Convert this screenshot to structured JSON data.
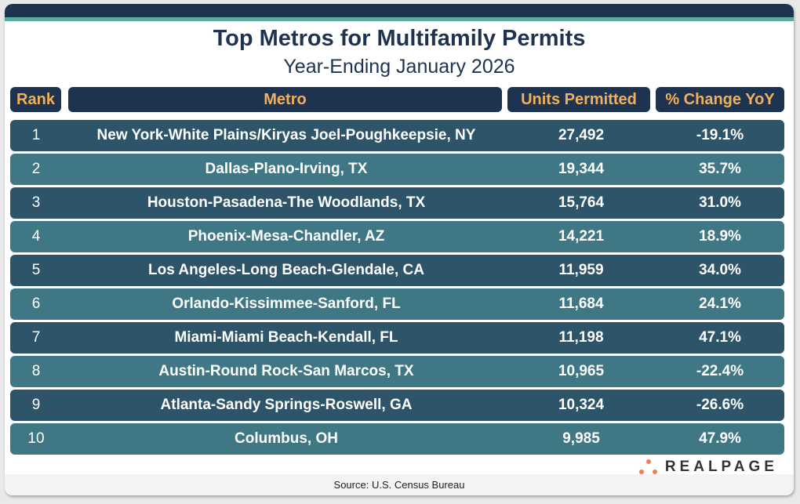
{
  "chart_data": {
    "type": "table",
    "title": "Top Metros for Multifamily Permits",
    "subtitle": "Year-Ending January 2026",
    "columns": [
      "Rank",
      "Metro",
      "Units Permitted",
      "% Change YoY"
    ],
    "rows": [
      [
        "1",
        "New York-White Plains/Kiryas Joel-Poughkeepsie, NY",
        "27,492",
        "-19.1%"
      ],
      [
        "2",
        "Dallas-Plano-Irving, TX",
        "19,344",
        "35.7%"
      ],
      [
        "3",
        "Houston-Pasadena-The Woodlands, TX",
        "15,764",
        "31.0%"
      ],
      [
        "4",
        "Phoenix-Mesa-Chandler, AZ",
        "14,221",
        "18.9%"
      ],
      [
        "5",
        "Los Angeles-Long Beach-Glendale, CA",
        "11,959",
        "34.0%"
      ],
      [
        "6",
        "Orlando-Kissimmee-Sanford, FL",
        "11,684",
        "24.1%"
      ],
      [
        "7",
        "Miami-Miami Beach-Kendall, FL",
        "11,198",
        "47.1%"
      ],
      [
        "8",
        "Austin-Round Rock-San Marcos, TX",
        "10,965",
        "-22.4%"
      ],
      [
        "9",
        "Atlanta-Sandy Springs-Roswell, GA",
        "10,324",
        "-26.6%"
      ],
      [
        "10",
        "Columbus, OH",
        "9,985",
        "47.9%"
      ]
    ],
    "colors": {
      "header_bg": "#1e3350",
      "header_text": "#f2b05a",
      "row_dark": "#2d5468",
      "row_light": "#3f7884",
      "accent": "#5aab9a"
    }
  },
  "logo": "REALPAGE",
  "source": "Source: U.S. Census Bureau"
}
